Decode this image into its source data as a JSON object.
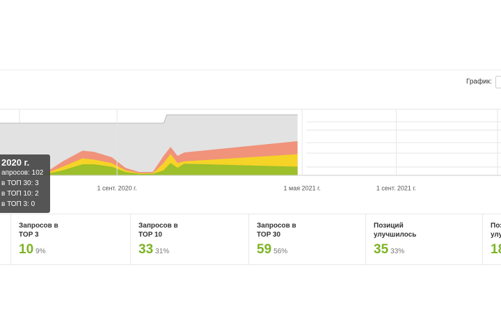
{
  "toolbar": {
    "graph_label": "График:"
  },
  "chart_data": {
    "type": "area",
    "xlim": [
      -153,
      502
    ],
    "ylim": [
      0,
      102
    ],
    "xticks": [
      {
        "value": 0,
        "label": "1 сент. 2020 г."
      },
      {
        "value": 242,
        "label": "1 мая 2021 г."
      },
      {
        "value": 365,
        "label": "1 сент. 2021 г."
      }
    ],
    "series": [
      {
        "name": "Запросов",
        "color": "#e2e2e2",
        "x": [
          -153,
          61,
          65,
          236
        ],
        "values": [
          88,
          88,
          102,
          102
        ]
      },
      {
        "name": "в ТОП 30",
        "color": "#f0937a",
        "x": [
          -98,
          -71,
          -45,
          -30,
          -7,
          11,
          29,
          47,
          61,
          70,
          79,
          88,
          236
        ],
        "values": [
          0,
          23,
          41,
          39,
          30,
          12,
          5,
          5,
          32,
          47,
          32,
          38,
          57
        ]
      },
      {
        "name": "в ТОП 10",
        "color": "#f6d327",
        "x": [
          -98,
          -71,
          -45,
          -30,
          -7,
          11,
          29,
          47,
          61,
          70,
          79,
          88,
          236
        ],
        "values": [
          0,
          14,
          28,
          26,
          20,
          8,
          3,
          3,
          20,
          35,
          20,
          23,
          35
        ]
      },
      {
        "name": "в ТОП 3",
        "color": "#9cbf2b",
        "x": [
          -98,
          -71,
          -45,
          -30,
          -7,
          11,
          29,
          47,
          61,
          70,
          79,
          88,
          236
        ],
        "values": [
          0,
          8,
          18,
          18,
          14,
          5,
          2,
          2,
          8,
          20,
          12,
          19,
          14
        ]
      }
    ]
  },
  "tooltip": {
    "title": "2020 г.",
    "lines": [
      "апросов: 102",
      "в ТОП 30: 3",
      "в ТОП 10: 2",
      "в ТОП 3: 0"
    ]
  },
  "stats": [
    {
      "label": [
        "Запросов в",
        "TOP 3"
      ],
      "value": "10",
      "percent": "9%"
    },
    {
      "label": [
        "Запросов в",
        "TOP 10"
      ],
      "value": "33",
      "percent": "31%"
    },
    {
      "label": [
        "Запросов в",
        "TOP 30"
      ],
      "value": "59",
      "percent": "56%"
    },
    {
      "label": [
        "Позиций",
        "улучшилось"
      ],
      "value": "35",
      "percent": "33%"
    },
    {
      "label": [
        "Поз",
        "улу"
      ],
      "value": "18"
    }
  ]
}
